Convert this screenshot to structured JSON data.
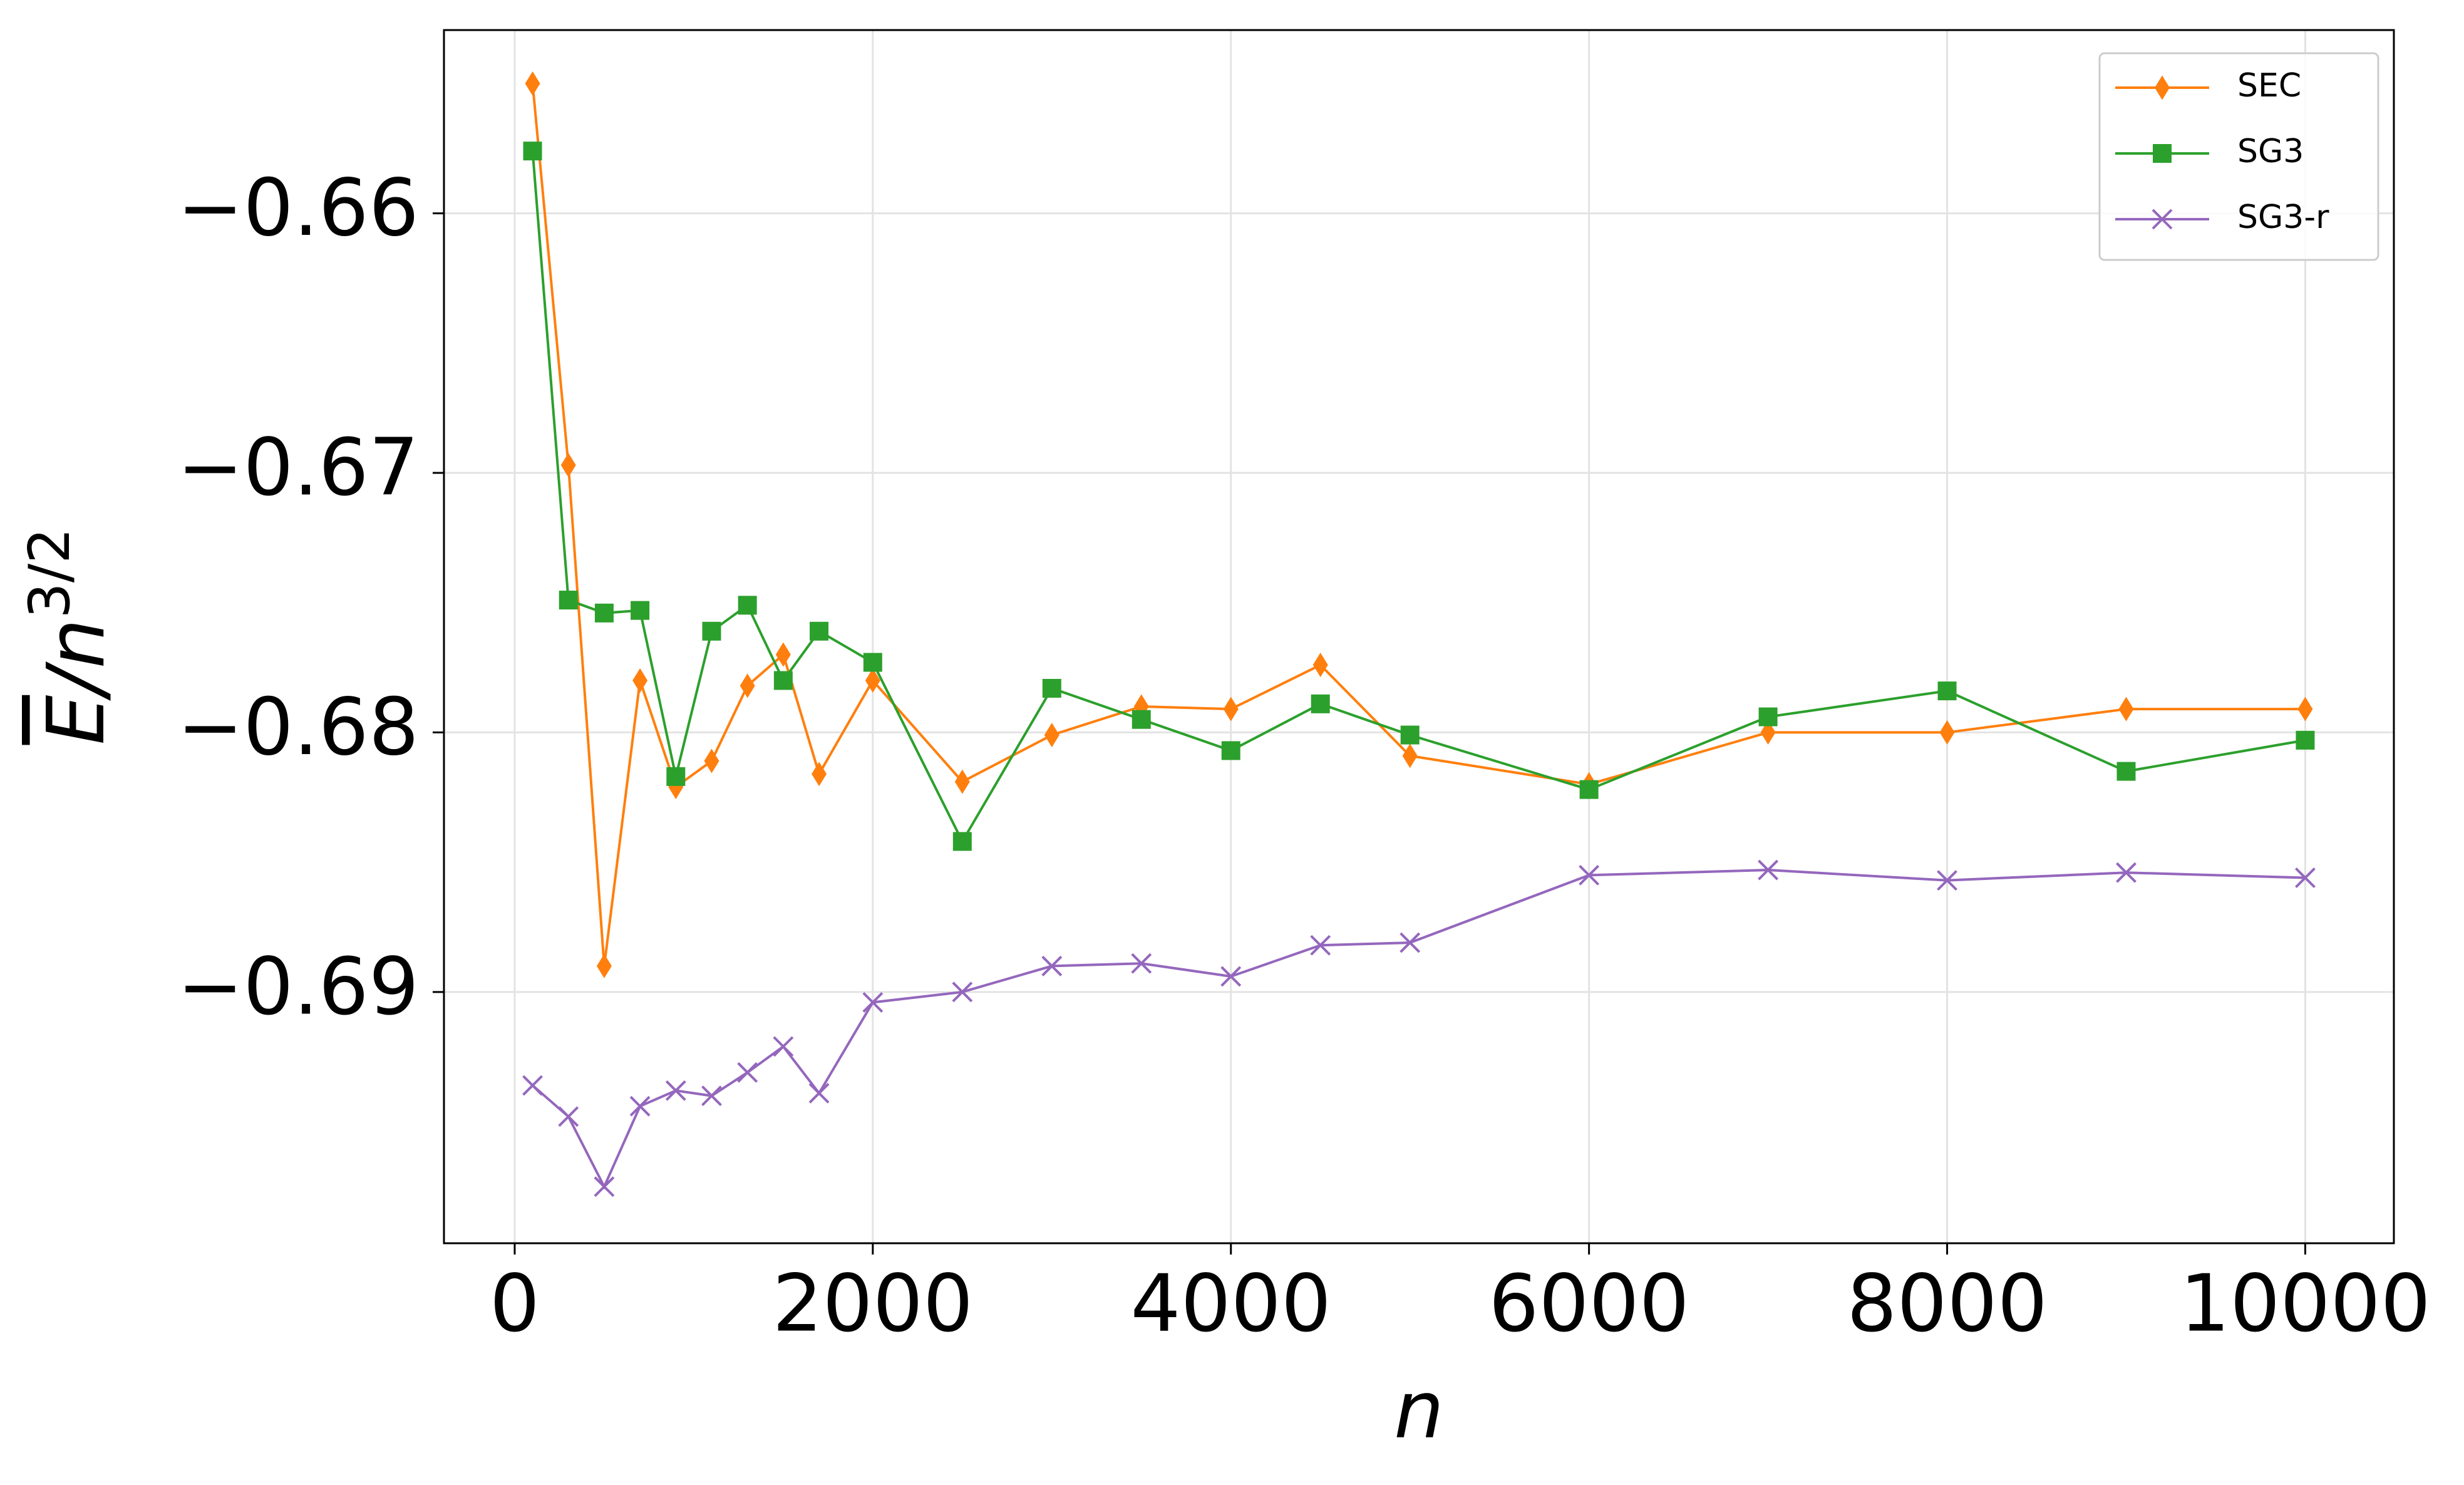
{
  "chart_data": {
    "type": "line",
    "xlabel": "n",
    "ylabel": [
      "E",
      "/n",
      "3/2"
    ],
    "x": [
      100,
      300,
      500,
      700,
      900,
      1100,
      1300,
      1500,
      1700,
      2000,
      2500,
      3000,
      3500,
      4000,
      4500,
      5000,
      6000,
      7000,
      8000,
      9000,
      10000
    ],
    "series": [
      {
        "name": "SEC",
        "color": "#ff7f0e",
        "marker": "diamond",
        "values": [
          -0.655,
          -0.6697,
          -0.689,
          -0.678,
          -0.6821,
          -0.6811,
          -0.6782,
          -0.677,
          -0.6816,
          -0.678,
          -0.6819,
          -0.6801,
          -0.679,
          -0.6791,
          -0.6774,
          -0.6809,
          -0.682,
          -0.68,
          -0.68,
          -0.6791,
          -0.6791
        ]
      },
      {
        "name": "SG3",
        "color": "#2ca02c",
        "marker": "square",
        "values": [
          -0.6576,
          -0.6749,
          -0.6754,
          -0.6753,
          -0.6817,
          -0.6761,
          -0.6751,
          -0.678,
          -0.6761,
          -0.6773,
          -0.6842,
          -0.6783,
          -0.6795,
          -0.6807,
          -0.6789,
          -0.6801,
          -0.6822,
          -0.6794,
          -0.6784,
          -0.6815,
          -0.6803
        ]
      },
      {
        "name": "SG3-r",
        "color": "#9467bd",
        "marker": "x",
        "values": [
          -0.6936,
          -0.6948,
          -0.6975,
          -0.6944,
          -0.6938,
          -0.694,
          -0.6931,
          -0.6921,
          -0.6939,
          -0.6904,
          -0.69,
          -0.689,
          -0.6889,
          -0.6894,
          -0.6882,
          -0.6881,
          -0.6855,
          -0.6853,
          -0.6857,
          -0.6854,
          -0.6856
        ]
      }
    ],
    "xlim": [
      -395,
      10495
    ],
    "ylim": [
      -0.69968,
      -0.65294
    ],
    "xticks": [
      0,
      2000,
      4000,
      6000,
      8000,
      10000
    ],
    "yticks": [
      {
        "value": -0.66,
        "label": "−0.66"
      },
      {
        "value": -0.67,
        "label": "−0.67"
      },
      {
        "value": -0.68,
        "label": "−0.68"
      },
      {
        "value": -0.69,
        "label": "−0.69"
      }
    ],
    "grid": true,
    "legend": "upper right"
  }
}
